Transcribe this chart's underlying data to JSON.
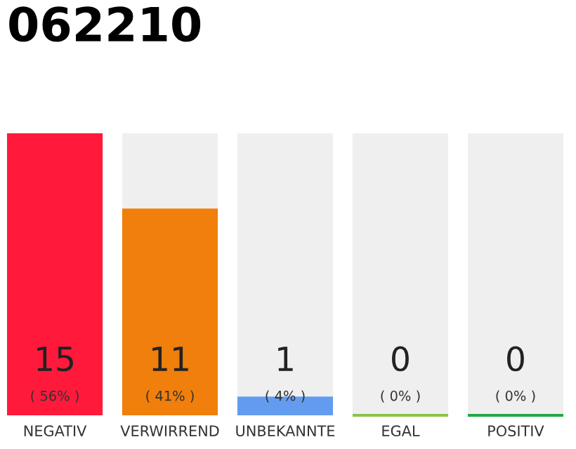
{
  "chart_data": {
    "type": "bar",
    "title": "062210",
    "stacked": true,
    "categories": [
      "NEGATIV",
      "VERWIRREND",
      "UNBEKANNTE",
      "EGAL",
      "POSITIV"
    ],
    "series": [
      {
        "colors": [
          "#ff1a3c",
          "#f07f0b",
          "#639cef",
          "#8bc34a",
          "#22a844"
        ],
        "values": [
          15,
          11,
          1,
          0,
          0
        ],
        "value_labels": [
          "15\n( 56% )",
          "11\n( 41% )",
          "1\n( 4% )",
          "0\n( 0% )",
          "0\n( 0% )"
        ]
      },
      {
        "color": "#efefef",
        "values": [
          0,
          4,
          14,
          15,
          15
        ]
      }
    ],
    "ylim": [
      0,
      15
    ],
    "grid": false,
    "legend": false
  }
}
